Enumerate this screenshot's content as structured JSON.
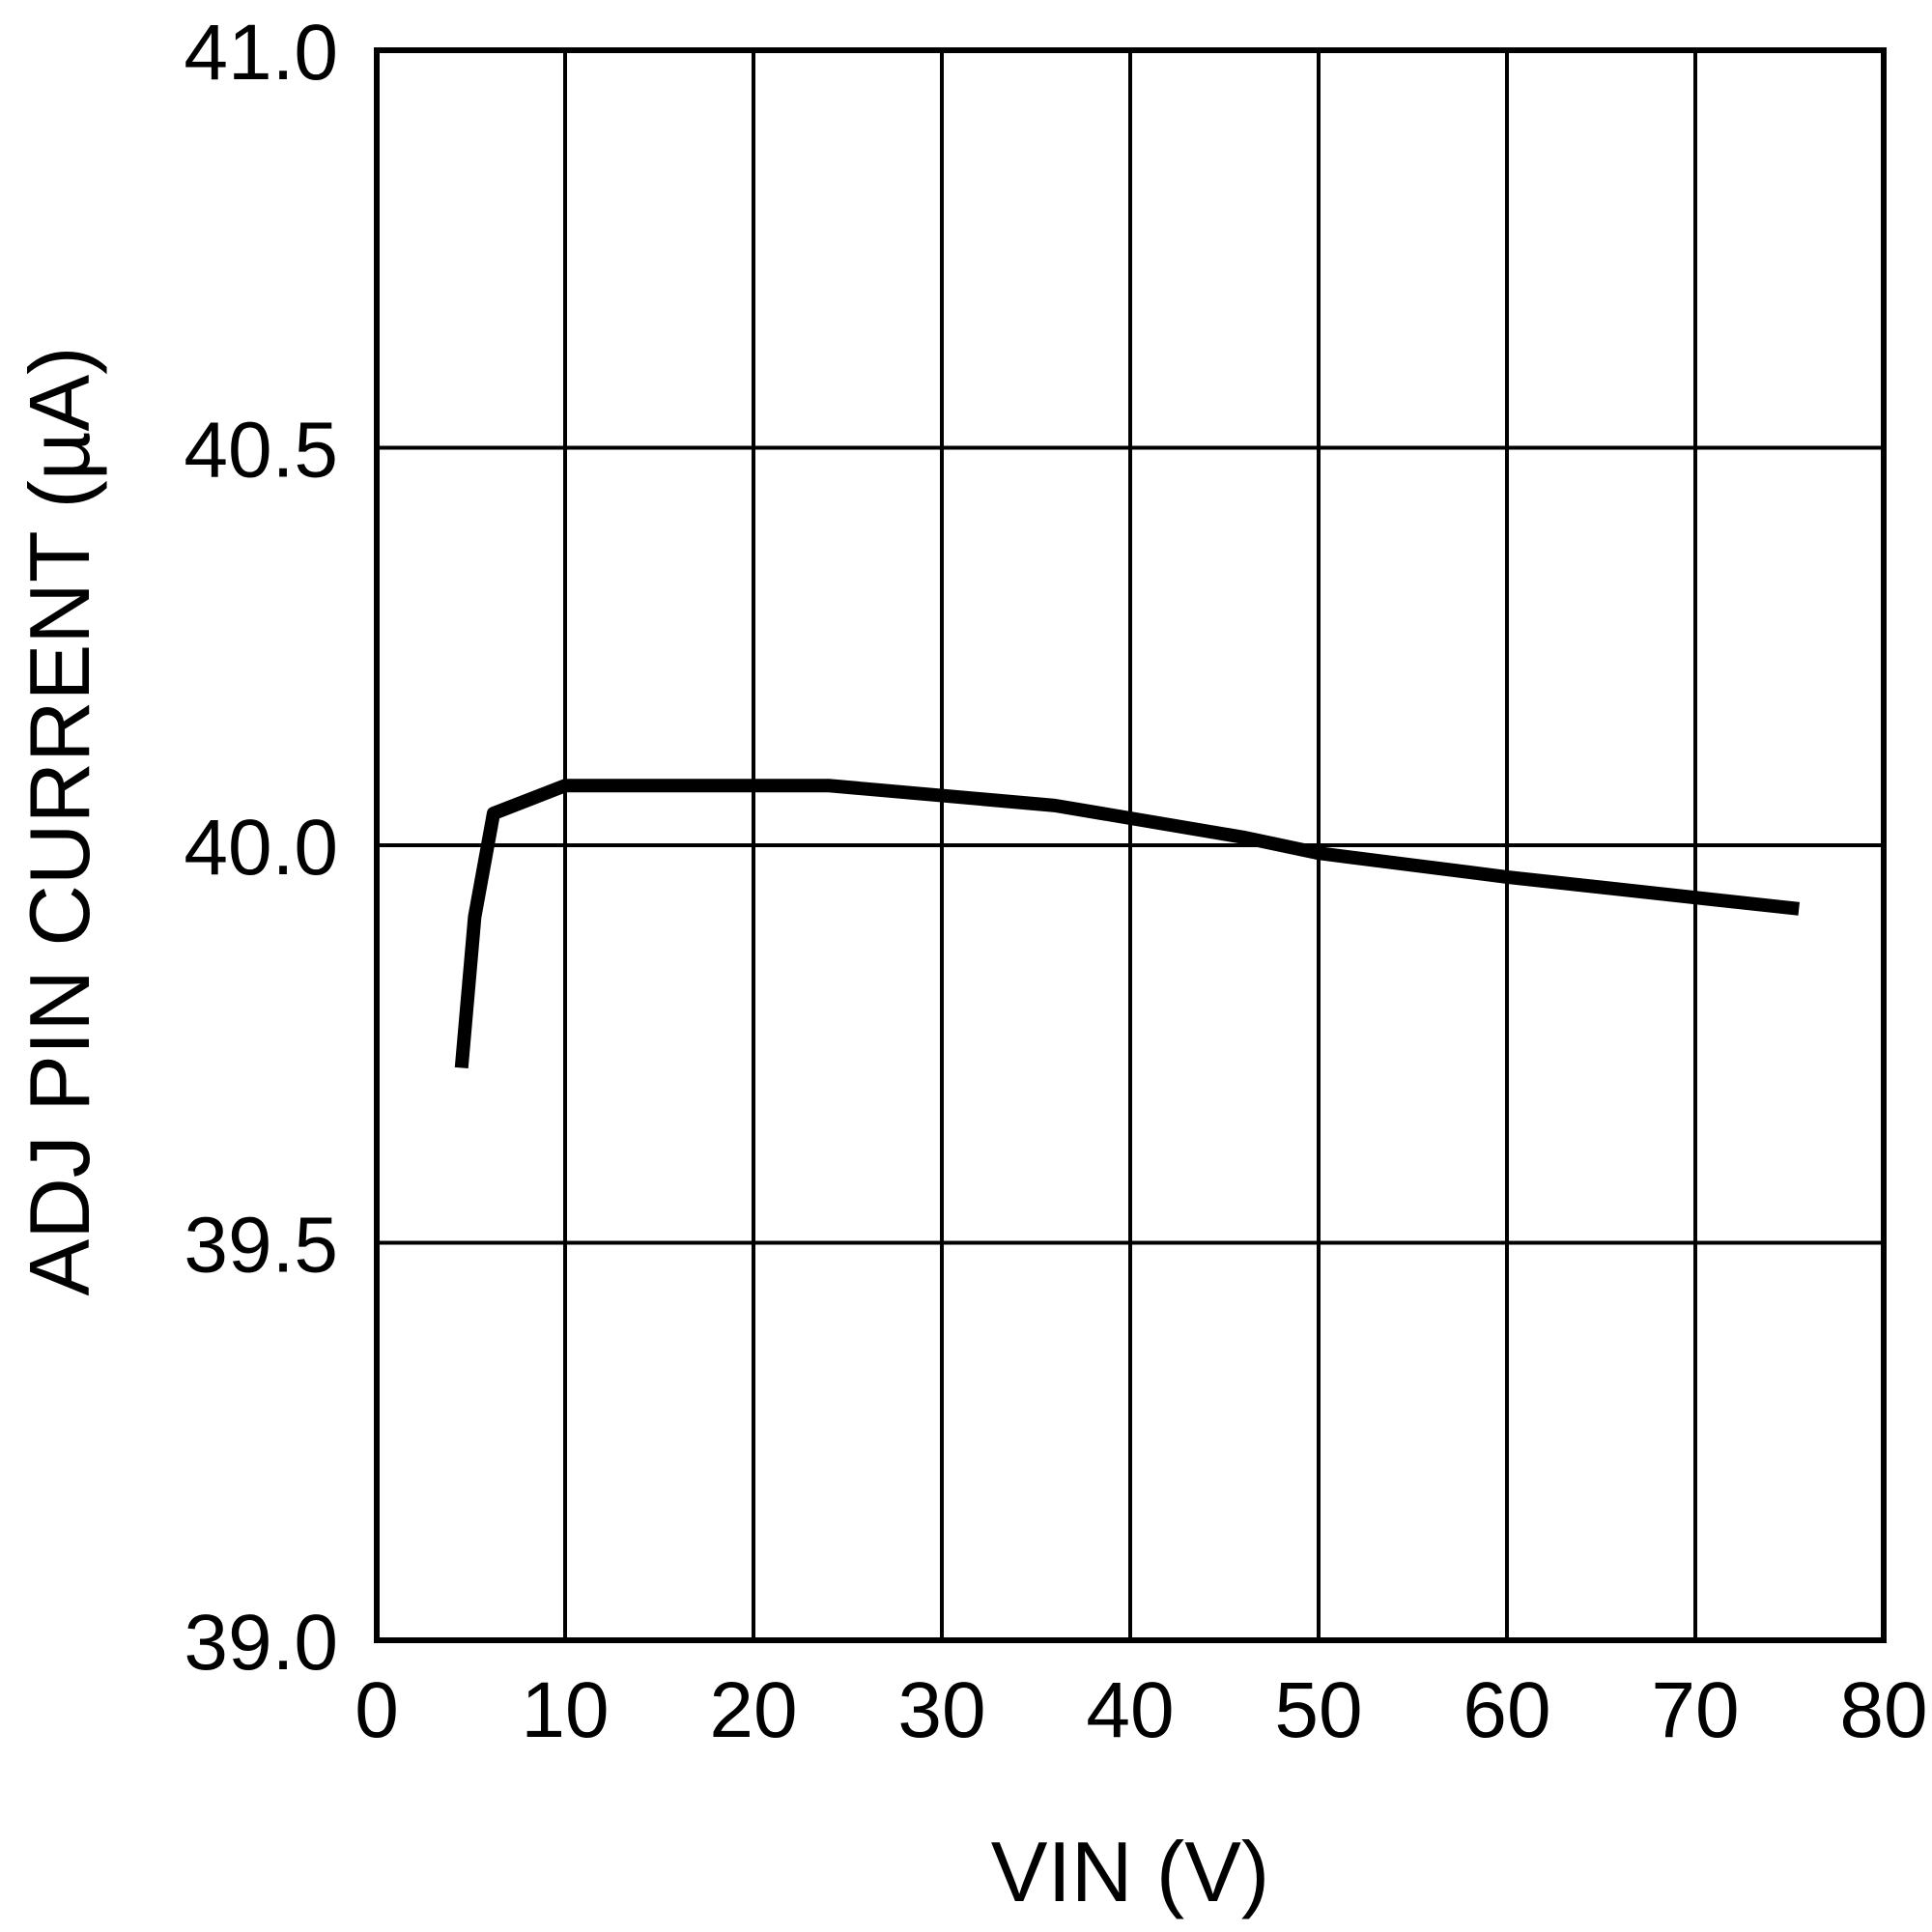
{
  "chart_data": {
    "type": "line",
    "title": "",
    "xlabel": "VIN (V)",
    "ylabel": "ADJ PIN CURRENT (µA)",
    "xlim": [
      0,
      80
    ],
    "ylim": [
      39.0,
      41.0
    ],
    "x_ticks": [
      0,
      10,
      20,
      30,
      40,
      50,
      60,
      70,
      80
    ],
    "y_ticks": [
      39.0,
      39.5,
      40.0,
      40.5,
      41.0
    ],
    "x_tick_labels": [
      "0",
      "10",
      "20",
      "30",
      "40",
      "50",
      "60",
      "70",
      "80"
    ],
    "y_tick_labels": [
      "39.0",
      "39.5",
      "40.0",
      "40.5",
      "41.0"
    ],
    "grid": true,
    "line_color": "#000000",
    "series": [
      {
        "x": [
          4.5,
          5.2,
          6.2,
          10,
          24,
          36,
          46,
          50,
          60,
          75.5
        ],
        "y": [
          39.72,
          39.91,
          40.04,
          40.075,
          40.075,
          40.05,
          40.01,
          39.99,
          39.96,
          39.92
        ]
      }
    ]
  }
}
